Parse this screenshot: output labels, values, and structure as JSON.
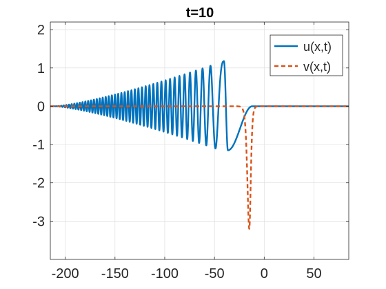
{
  "chart_data": {
    "type": "line",
    "title": "t=10",
    "xlabel": "",
    "ylabel": "",
    "xlim": [
      -215,
      85
    ],
    "ylim": [
      -4,
      2.2
    ],
    "x_ticks": [
      -200,
      -150,
      -100,
      -50,
      0,
      50
    ],
    "x_tick_labels": [
      "-200",
      "-150",
      "-100",
      "-50",
      "0",
      "50"
    ],
    "y_ticks": [
      -3,
      -2,
      -1,
      0,
      1,
      2
    ],
    "y_tick_labels": [
      "-3",
      "-2",
      "-1",
      "0",
      "1",
      "2"
    ],
    "grid": true,
    "legend_position": "top-right",
    "series": [
      {
        "name": "u(x,t)",
        "color": "#0072BD",
        "line_style": "solid",
        "model": {
          "kind": "oscillatory-wave-packet",
          "front_x": -40.5,
          "front_peak": 1.18,
          "phase_scale": 29.4,
          "phase_exponent": 1.5,
          "amplitude_tail_x": -210,
          "amplitude_exponent": 1.3,
          "trough_x": -36.5,
          "trough_value": -1.15,
          "decay_end_x": -12
        }
      },
      {
        "name": "v(x,t)",
        "color": "#D95319",
        "line_style": "dashed",
        "model": {
          "kind": "soliton-dip",
          "center_x": -15,
          "min_value": -3.2,
          "left_width": 2.6,
          "right_width": 2.0
        }
      }
    ]
  }
}
